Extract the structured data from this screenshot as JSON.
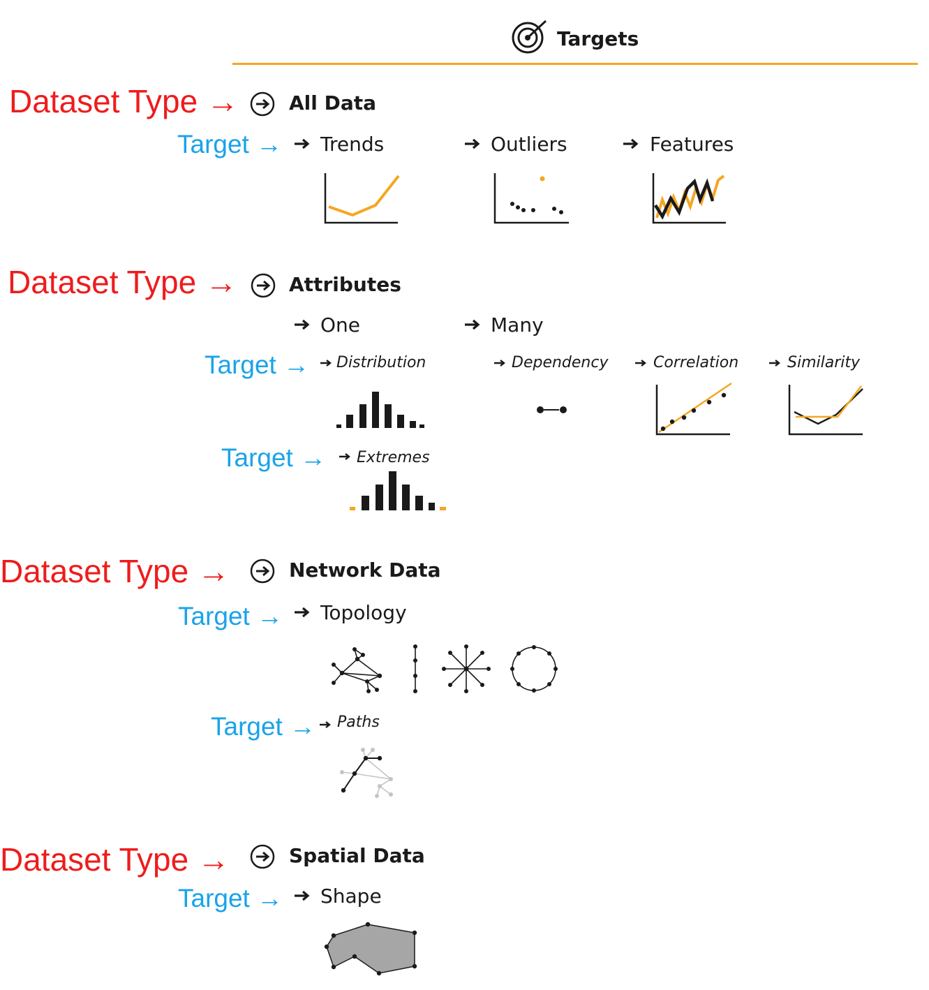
{
  "header": {
    "title": "Targets",
    "icon": "target-icon",
    "rule_color": "#f5a623"
  },
  "colors": {
    "dataset_label": "#ee1c1c",
    "target_label": "#1aa3e8",
    "accent": "#f5a623",
    "ink": "#1a1a1a",
    "shape_fill": "#a6a6a6"
  },
  "labels": {
    "dataset_type": "Dataset Type →",
    "target": "Target →"
  },
  "sections": {
    "all_data": {
      "title": "All Data",
      "items": {
        "trends": "Trends",
        "outliers": "Outliers",
        "features": "Features"
      }
    },
    "attributes": {
      "title": "Attributes",
      "one": "One",
      "many": "Many",
      "items": {
        "distribution": "Distribution",
        "dependency": "Dependency",
        "correlation": "Correlation",
        "similarity": "Similarity",
        "extremes": "Extremes"
      }
    },
    "network": {
      "title": "Network Data",
      "items": {
        "topology": "Topology",
        "paths": "Paths"
      }
    },
    "spatial": {
      "title": "Spatial Data",
      "items": {
        "shape": "Shape"
      }
    }
  }
}
